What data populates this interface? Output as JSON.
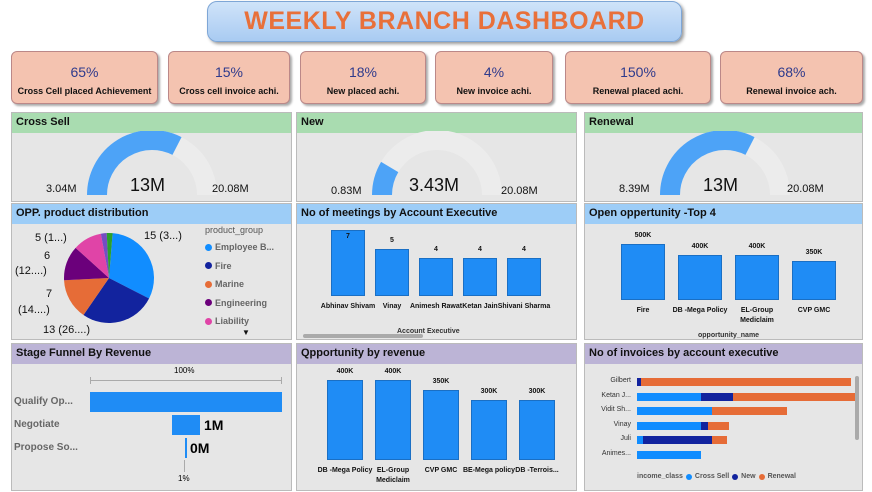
{
  "title": "WEEKLY BRANCH DASHBOARD",
  "kpis": [
    {
      "value": "65%",
      "label": "Cross Cell placed Achievement"
    },
    {
      "value": "15%",
      "label": "Cross  cell invoice achi."
    },
    {
      "value": "18%",
      "label": "New placed achi."
    },
    {
      "value": "4%",
      "label": "New invoice achi."
    },
    {
      "value": "150%",
      "label": "Renewal placed achi."
    },
    {
      "value": "68%",
      "label": "Renewal invoice ach."
    }
  ],
  "gauges": {
    "cross_sell": {
      "title": "Cross Sell",
      "min": "3.04M",
      "value": "13M",
      "max": "20.08M",
      "fraction": 0.65
    },
    "new": {
      "title": "New",
      "min": "0.83M",
      "value": "3.43M",
      "max": "20.08M",
      "fraction": 0.17
    },
    "renewal": {
      "title": "Renewal",
      "min": "8.39M",
      "value": "13M",
      "max": "20.08M",
      "fraction": 0.65
    }
  },
  "pie": {
    "title": "OPP. product distribution",
    "legend_title": "product_group",
    "legend": [
      {
        "name": "Employee B...",
        "color": "#118dff"
      },
      {
        "name": "Fire",
        "color": "#12239e"
      },
      {
        "name": "Marine",
        "color": "#e66c37"
      },
      {
        "name": "Engineering",
        "color": "#6b007b"
      },
      {
        "name": "Liability",
        "color": "#e044a7"
      }
    ],
    "labels": [
      "5 (1...)",
      "6",
      "(12....)",
      "7",
      "(14....)",
      "13 (26....)",
      "15 (3...)"
    ]
  },
  "meetings": {
    "title": "No of meetings by Account Executive",
    "axis_title": "Account Executive",
    "labels": [
      "Abhinav Shivam",
      "Vinay",
      "Animesh Rawat",
      "Ketan Jain",
      "Shivani Sharma"
    ],
    "values": [
      7,
      5,
      4,
      4,
      4
    ],
    "value_labels": [
      "7",
      "5",
      "4",
      "4",
      "4"
    ]
  },
  "open_opp": {
    "title": "Open oppertunity -Top 4",
    "axis_title": "opportunity_name",
    "labels": [
      "Fire",
      "DB -Mega Policy",
      "EL-Group Mediclaim",
      "CVP GMC"
    ],
    "values": [
      500,
      400,
      400,
      350
    ],
    "value_labels": [
      "500K",
      "400K",
      "400K",
      "350K"
    ]
  },
  "funnel": {
    "title": "Stage Funnel By Revenue",
    "top_pct": "100%",
    "bottom_pct": "1%",
    "stages": [
      {
        "name": "Qualify Op...",
        "value": "",
        "fraction": 1.0
      },
      {
        "name": "Negotiate",
        "value": "1M",
        "fraction": 0.15
      },
      {
        "name": "Propose So...",
        "value": "0M",
        "fraction": 0.01
      }
    ]
  },
  "opp_revenue": {
    "title": "Qpportunity by revenue",
    "labels": [
      "DB -Mega Policy",
      "EL-Group Mediclaim",
      "CVP GMC",
      "BE-Mega policy",
      "DB -Terrois..."
    ],
    "values": [
      400,
      400,
      350,
      300,
      300
    ],
    "value_labels": [
      "400K",
      "400K",
      "350K",
      "300K",
      "300K"
    ]
  },
  "invoices": {
    "title": "No of invoices by account executive",
    "legend_title": "income_class",
    "legend": [
      {
        "name": "Cross Sell",
        "color": "#118dff"
      },
      {
        "name": "New",
        "color": "#12239e"
      },
      {
        "name": "Renewal",
        "color": "#e66c37"
      }
    ],
    "rows": [
      {
        "name": "Gilbert",
        "cross": 0.0,
        "new": 0.02,
        "renewal": 0.98
      },
      {
        "name": "Ketan J...",
        "cross": 0.3,
        "new": 0.15,
        "renewal": 0.57
      },
      {
        "name": "Vidit Sh...",
        "cross": 0.35,
        "new": 0.0,
        "renewal": 0.35
      },
      {
        "name": "Vinay",
        "cross": 0.3,
        "new": 0.03,
        "renewal": 0.1
      },
      {
        "name": "Juli",
        "cross": 0.03,
        "new": 0.32,
        "renewal": 0.07
      },
      {
        "name": "Animes...",
        "cross": 0.3,
        "new": 0.0,
        "renewal": 0.0
      }
    ]
  },
  "colors": {
    "gauge_fill": "#4da3f7",
    "gauge_track": "#ececec",
    "bar": "#1f8cf5"
  }
}
